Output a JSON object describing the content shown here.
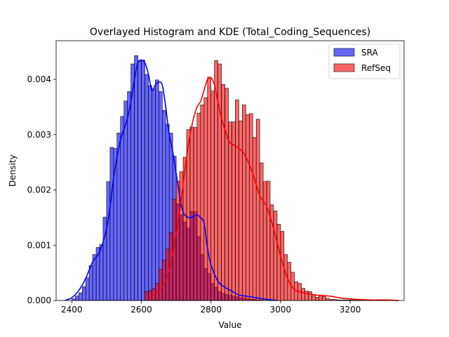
{
  "chart_data": {
    "type": "bar",
    "title": "Overlayed Histogram and KDE (Total_Coding_Sequences)",
    "xlabel": "Value",
    "ylabel": "Density",
    "xlim": [
      2355,
      3355
    ],
    "ylim": [
      0,
      0.0047
    ],
    "xticks": [
      2400,
      2600,
      2800,
      3000,
      3200
    ],
    "yticks": [
      0,
      0.001,
      0.002,
      0.003,
      0.004
    ],
    "ytick_labels": [
      "0.000",
      "0.001",
      "0.002",
      "0.003",
      "0.004"
    ],
    "legend_position": "top-right",
    "series": [
      {
        "name": "SRA",
        "color": "#0000ff",
        "bin_start": 2400,
        "bin_width": 10,
        "density": [
          3e-05,
          8e-05,
          0.00014,
          0.00025,
          0.00041,
          0.00063,
          0.00083,
          0.00096,
          0.00101,
          0.00151,
          0.00215,
          0.00277,
          0.00275,
          0.00303,
          0.00333,
          0.00361,
          0.00378,
          0.00428,
          0.00443,
          0.00433,
          0.00435,
          0.00409,
          0.00389,
          0.00383,
          0.00399,
          0.00378,
          0.00344,
          0.00319,
          0.00303,
          0.00261,
          0.00175,
          0.00155,
          0.00142,
          0.00131,
          0.00161,
          0.00161,
          0.00116,
          0.00083,
          0.00058,
          0.00049,
          0.00031,
          0.00024,
          0.00016,
          0.00013,
          0.00011,
          0.0001,
          8e-05,
          7e-05,
          5e-05,
          4e-05,
          3e-05,
          2e-05,
          2e-05,
          1e-05,
          1e-05
        ],
        "kde": {
          "x": [
            2380,
            2400,
            2420,
            2440,
            2460,
            2480,
            2500,
            2510,
            2520,
            2530,
            2540,
            2550,
            2560,
            2570,
            2580,
            2590,
            2600,
            2610,
            2620,
            2630,
            2640,
            2650,
            2660,
            2670,
            2680,
            2690,
            2700,
            2710,
            2720,
            2730,
            2740,
            2750,
            2760,
            2770,
            2780,
            2790,
            2800,
            2820,
            2840,
            2860,
            2880,
            2900,
            2930,
            2960,
            2990
          ],
          "y": [
            0,
            5e-05,
            0.00018,
            0.0004,
            0.0007,
            0.00088,
            0.0013,
            0.0017,
            0.0022,
            0.0026,
            0.0029,
            0.0031,
            0.0033,
            0.0036,
            0.004,
            0.0043,
            0.00435,
            0.0043,
            0.0041,
            0.0038,
            0.0039,
            0.00395,
            0.0039,
            0.0035,
            0.003,
            0.0027,
            0.0023,
            0.0019,
            0.0016,
            0.00152,
            0.0015,
            0.00152,
            0.00155,
            0.0015,
            0.0014,
            0.00095,
            0.00065,
            0.00035,
            0.00024,
            0.00017,
            0.0001,
            8e-05,
            5e-05,
            2e-05,
            0
          ]
        }
      },
      {
        "name": "RefSeq",
        "color": "#ff0000",
        "bin_start": 2610,
        "bin_width": 10,
        "density": [
          0.00016,
          0.00018,
          0.00021,
          0.00031,
          0.00056,
          0.00073,
          0.00093,
          0.00123,
          0.00183,
          0.00216,
          0.00233,
          0.00259,
          0.00309,
          0.00314,
          0.00313,
          0.00339,
          0.00354,
          0.00367,
          0.00404,
          0.00379,
          0.00434,
          0.00428,
          0.00391,
          0.00384,
          0.00323,
          0.00323,
          0.00363,
          0.00325,
          0.00354,
          0.00336,
          0.00338,
          0.00295,
          0.00328,
          0.00249,
          0.00215,
          0.00216,
          0.00173,
          0.00162,
          0.00138,
          0.00125,
          0.00083,
          0.00069,
          0.00051,
          0.00034,
          0.00031,
          0.00022,
          0.00017,
          0.00016,
          0.00011,
          6e-05,
          9e-05,
          7e-05,
          4e-05,
          2e-05,
          2e-05,
          1e-05,
          1e-05,
          1e-05,
          1e-05,
          1e-05,
          1e-05,
          1e-05,
          1e-05,
          1e-05,
          1e-05,
          1e-05,
          1e-05,
          1e-05,
          1e-05,
          1e-05,
          1e-05,
          1e-05
        ],
        "kde": {
          "x": [
            2620,
            2640,
            2660,
            2680,
            2700,
            2710,
            2720,
            2730,
            2740,
            2750,
            2760,
            2770,
            2780,
            2790,
            2800,
            2810,
            2820,
            2830,
            2840,
            2850,
            2860,
            2870,
            2880,
            2890,
            2900,
            2920,
            2940,
            2960,
            2980,
            3000,
            3020,
            3040,
            3060,
            3080,
            3100,
            3140,
            3180,
            3220,
            3260,
            3300,
            3340
          ],
          "y": [
            5e-05,
            0.00012,
            0.00025,
            0.00055,
            0.0012,
            0.0016,
            0.0021,
            0.0026,
            0.003,
            0.0033,
            0.0035,
            0.0036,
            0.0038,
            0.004,
            0.00403,
            0.0039,
            0.0036,
            0.0033,
            0.0031,
            0.0029,
            0.00283,
            0.0028,
            0.00275,
            0.0027,
            0.0026,
            0.0023,
            0.0019,
            0.0017,
            0.0013,
            0.0008,
            0.0004,
            0.0002,
            0.00015,
            0.00012,
            0.0001,
            8e-05,
            4e-05,
            2e-05,
            1e-05,
            1e-05,
            0
          ]
        }
      }
    ]
  }
}
